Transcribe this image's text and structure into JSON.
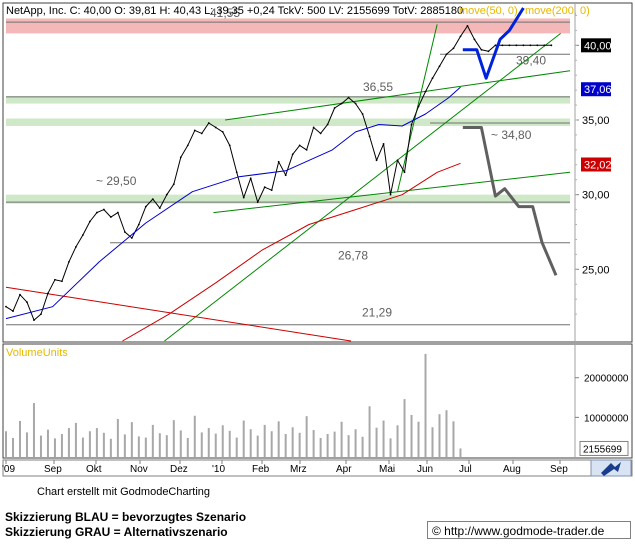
{
  "header": {
    "text": "NetApp, Inc. C: 40,00 O: 39,81 H: 40,43 L: 39,35 +0,24 TckV: 500 LV: 2155699 TotV: 2885180",
    "legend_ma50": "move(50, 0)",
    "legend_ma200": "move(200, 0)"
  },
  "chart_data": [
    {
      "type": "line",
      "title": "NetApp, Inc.",
      "ohlc": {
        "close": 40.0,
        "open": 39.81,
        "high": 40.43,
        "low": 39.35,
        "change": 0.24
      },
      "x_ticks": [
        "'09",
        "Sep",
        "Okt",
        "Nov",
        "Dez",
        "'10",
        "Feb",
        "Mrz",
        "Apr",
        "Mai",
        "Jun",
        "Jul",
        "Aug",
        "Sep"
      ],
      "y_ticks": [
        "40,00",
        "35,00",
        "30,00",
        "25,00"
      ],
      "ylim": [
        20.2,
        42.7
      ],
      "price_labels": [
        {
          "text": "40,00",
          "value": 40.0,
          "color": "#000000"
        },
        {
          "text": "37,06",
          "value": 37.06,
          "color": "#0000cc"
        },
        {
          "text": "32,02",
          "value": 32.02,
          "color": "#cc0000"
        }
      ],
      "levels": [
        {
          "label": "41,55",
          "value": 41.55
        },
        {
          "label": "39,40",
          "value": 39.4
        },
        {
          "label": "36,55",
          "value": 36.55
        },
        {
          "label": "~ 34,80",
          "value": 34.8
        },
        {
          "label": "~ 29,50",
          "value": 29.5
        },
        {
          "label": "26,78",
          "value": 26.78
        },
        {
          "label": "21,29",
          "value": 21.29
        }
      ],
      "zones": [
        {
          "from": 40.8,
          "to": 41.8,
          "color": "#f4b8b8"
        },
        {
          "from": 36.1,
          "to": 36.6,
          "color": "#cfe8c8"
        },
        {
          "from": 34.6,
          "to": 35.1,
          "color": "#cfe8c8"
        },
        {
          "from": 29.4,
          "to": 30.0,
          "color": "#cfe8c8"
        }
      ],
      "series": [
        {
          "name": "NetApp, Inc.",
          "color": "#000000",
          "x": [
            0,
            3,
            6,
            9,
            12,
            15,
            18,
            21,
            24,
            27,
            30,
            33,
            36,
            39,
            42,
            45,
            48,
            51,
            54,
            57,
            60,
            63,
            66,
            69,
            72,
            75,
            78,
            81,
            84,
            87,
            90,
            93,
            96,
            99,
            102,
            105,
            108,
            111,
            114,
            117,
            120,
            123,
            126,
            129,
            132,
            135,
            138,
            141,
            144,
            147,
            150,
            153,
            156,
            159,
            162,
            165,
            168,
            171,
            174,
            177,
            180,
            183,
            186,
            189,
            192,
            195,
            198,
            201,
            204,
            207,
            210,
            213,
            216,
            219,
            222,
            225,
            228,
            231,
            234
          ],
          "values": [
            22.5,
            22.2,
            23.3,
            22.8,
            21.6,
            22.0,
            23.4,
            24.3,
            24.2,
            25.5,
            26.5,
            27.3,
            28.2,
            28.8,
            29.0,
            28.5,
            28.8,
            27.5,
            27.1,
            28.0,
            29.2,
            29.7,
            29.1,
            30.0,
            30.7,
            32.5,
            33.3,
            34.3,
            34.1,
            34.8,
            34.5,
            34.2,
            33.3,
            31.5,
            29.8,
            31.1,
            29.5,
            30.5,
            30.3,
            32.2,
            31.3,
            32.7,
            33.3,
            33.0,
            34.5,
            34.1,
            34.7,
            35.8,
            36.1,
            36.5,
            36.1,
            35.4,
            33.9,
            32.3,
            33.4,
            30.0,
            32.3,
            31.5,
            34.7,
            35.9,
            36.9,
            37.8,
            38.6,
            39.4,
            39.8,
            40.6,
            41.3,
            40.4,
            39.7,
            39.6,
            40.0,
            40.0,
            40.0,
            40.0,
            40.0,
            40.0,
            40.0,
            40.0,
            40.0
          ]
        },
        {
          "name": "move(50, 0)",
          "color": "#0000cc",
          "width": 1,
          "x": [
            0,
            20,
            40,
            60,
            80,
            100,
            120,
            140,
            150,
            160,
            170,
            180,
            190,
            195
          ],
          "values": [
            21.7,
            22.5,
            25.5,
            28.1,
            30.2,
            31.2,
            31.6,
            33.0,
            34.2,
            34.7,
            34.6,
            35.4,
            36.5,
            37.2
          ]
        },
        {
          "name": "move(200, 0)",
          "color": "#cc0000",
          "width": 1,
          "x": [
            50,
            70,
            90,
            110,
            130,
            150,
            170,
            185,
            195
          ],
          "values": [
            20.2,
            22.0,
            24.1,
            26.3,
            28.0,
            29.0,
            30.0,
            31.5,
            32.1
          ]
        },
        {
          "name": "Skizzierung BLAU",
          "color": "#0022dd",
          "width": 3,
          "x": [
            196,
            202,
            206,
            212,
            216,
            222
          ],
          "values": [
            39.7,
            39.7,
            37.8,
            40.4,
            41.0,
            42.5
          ]
        },
        {
          "name": "Skizzierung GRAU",
          "color": "#606060",
          "width": 3,
          "x": [
            196,
            204,
            210,
            214,
            220,
            226,
            230,
            236
          ],
          "values": [
            34.5,
            34.5,
            29.9,
            30.4,
            29.2,
            29.2,
            26.8,
            24.6
          ]
        }
      ],
      "trendlines": [
        {
          "color": "#008800",
          "x": [
            68,
            238
          ],
          "values": [
            20.2,
            40.8
          ]
        },
        {
          "color": "#008800",
          "x": [
            94,
            242
          ],
          "values": [
            35.0,
            38.3
          ]
        },
        {
          "color": "#008800",
          "x": [
            89,
            242
          ],
          "values": [
            28.8,
            31.5
          ]
        },
        {
          "color": "#008800",
          "x": [
            168,
            185
          ],
          "values": [
            30.2,
            41.4
          ]
        },
        {
          "color": "#cc0000",
          "x": [
            0,
            148
          ],
          "values": [
            23.8,
            20.2
          ]
        }
      ],
      "xlim": [
        0,
        242
      ],
      "grid": false,
      "legend": "top-right"
    },
    {
      "type": "bar",
      "title": "VolumeUnits",
      "y_ticks": [
        "20000000",
        "10000000"
      ],
      "last_value_label": "2155699",
      "ylim": [
        0,
        28000000
      ],
      "x": [
        0,
        3,
        6,
        9,
        12,
        15,
        18,
        21,
        24,
        27,
        30,
        33,
        36,
        39,
        42,
        45,
        48,
        51,
        54,
        57,
        60,
        63,
        66,
        69,
        72,
        75,
        78,
        81,
        84,
        87,
        90,
        93,
        96,
        99,
        102,
        105,
        108,
        111,
        114,
        117,
        120,
        123,
        126,
        129,
        132,
        135,
        138,
        141,
        144,
        147,
        150,
        153,
        156,
        159,
        162,
        165,
        168,
        171,
        174,
        177,
        180,
        183,
        186,
        189,
        192,
        195,
        198,
        201,
        204,
        207,
        210,
        213,
        216,
        219,
        222,
        225,
        228,
        231,
        234
      ],
      "values": [
        6500000,
        4800000,
        9100000,
        6200000,
        13600000,
        5400000,
        6900000,
        4700000,
        5800000,
        7300000,
        8600000,
        4900000,
        6500000,
        7300000,
        6100000,
        4600000,
        9600000,
        5700000,
        8800000,
        5200000,
        4900000,
        8100000,
        6000000,
        5500000,
        9300000,
        6700000,
        4800000,
        10400000,
        6200000,
        7300000,
        5900000,
        8000000,
        6600000,
        4900000,
        9200000,
        7000000,
        5400000,
        8100000,
        6500000,
        9000000,
        5800000,
        7500000,
        6100000,
        10300000,
        6800000,
        4800000,
        5800000,
        6400000,
        8900000,
        5500000,
        7000000,
        5100000,
        12800000,
        7400000,
        9200000,
        4700000,
        8000000,
        14600000,
        10600000,
        8900000,
        26000000,
        7500000,
        10800000,
        11800000,
        9000000,
        2155699,
        0,
        0,
        0,
        0,
        0,
        0,
        0,
        0,
        0,
        0,
        0,
        0,
        0
      ]
    }
  ],
  "footer": {
    "credit": "Chart erstellt mit GodmodeCharting",
    "note_blue": "Skizzierung BLAU = bevorzugtes Szenario",
    "note_gray": "Skizzierung GRAU = Alternativszenario",
    "url": "© http://www.godmode-trader.de"
  }
}
